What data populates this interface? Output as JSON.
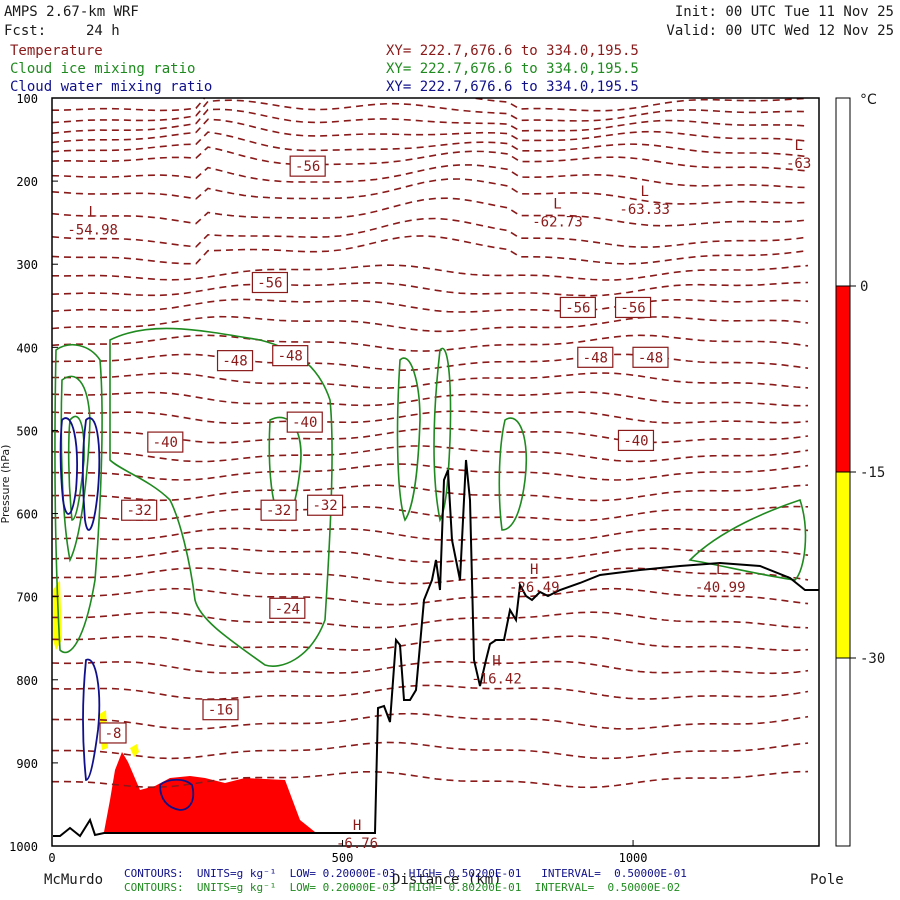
{
  "header": {
    "model": "AMPS 2.67-km WRF",
    "forecast_label": "Fcst:",
    "forecast_value": "24 h",
    "init": "Init: 00 UTC Tue 11 Nov 25",
    "valid": "Valid: 00 UTC Wed 12 Nov 25"
  },
  "fields": [
    {
      "name": "Temperature",
      "xy": "XY= 222.7,676.6 to 334.0,195.5",
      "color": "#8a1a1a"
    },
    {
      "name": "Cloud ice mixing ratio",
      "xy": "XY= 222.7,676.6 to 334.0,195.5",
      "color": "#1f8a1f"
    },
    {
      "name": "Cloud water mixing ratio",
      "xy": "XY= 222.7,676.6 to 334.0,195.5",
      "color": "#10108a"
    }
  ],
  "colorbar": {
    "unit": "°C",
    "ticks": [
      "0",
      "-15",
      "-30"
    ],
    "colors": {
      "red": "#ff0000",
      "yellow": "#ffff00",
      "white": "#ffffff"
    }
  },
  "footer": {
    "left_label": "McMurdo",
    "right_label": "Pole",
    "distance_label": "Distance (km)",
    "contour_water": "CONTOURS:  UNITS=g kg⁻¹  LOW= 0.20000E-03  HIGH= 0.50200E-01   INTERVAL=  0.50000E-01",
    "contour_ice": "CONTOURS:  UNITS=g kg⁻¹  LOW= 0.20000E-03  HIGH= 0.80200E-01  INTERVAL=  0.50000E-02"
  },
  "chart_data": {
    "type": "cross-section contour",
    "xlabel": "Distance (km)",
    "ylabel": "Pressure (hPa)",
    "xlim": [
      0,
      1320
    ],
    "ylim": [
      1000,
      100
    ],
    "x_ticks": [
      "0",
      "500",
      "1000"
    ],
    "y_ticks": [
      "100",
      "200",
      "300",
      "400",
      "500",
      "600",
      "700",
      "800",
      "900",
      "1000"
    ],
    "temperature_labels": [
      {
        "text": "-56",
        "x": 440,
        "p": 182
      },
      {
        "text": "-56",
        "x": 375,
        "p": 322
      },
      {
        "text": "-56",
        "x": 905,
        "p": 352
      },
      {
        "text": "-56",
        "x": 1000,
        "p": 352
      },
      {
        "text": "-48",
        "x": 315,
        "p": 416
      },
      {
        "text": "-48",
        "x": 410,
        "p": 410
      },
      {
        "text": "-48",
        "x": 935,
        "p": 412
      },
      {
        "text": "-48",
        "x": 1030,
        "p": 412
      },
      {
        "text": "-40",
        "x": 195,
        "p": 514
      },
      {
        "text": "-40",
        "x": 435,
        "p": 490
      },
      {
        "text": "-40",
        "x": 1005,
        "p": 512
      },
      {
        "text": "-32",
        "x": 150,
        "p": 596
      },
      {
        "text": "-32",
        "x": 390,
        "p": 596
      },
      {
        "text": "-32",
        "x": 470,
        "p": 590
      },
      {
        "text": "-24",
        "x": 405,
        "p": 714
      },
      {
        "text": "-16",
        "x": 290,
        "p": 836
      },
      {
        "text": "-8",
        "x": 105,
        "p": 864
      }
    ],
    "extrema": [
      {
        "kind": "L",
        "value": "-54.98",
        "x": 70,
        "p": 250
      },
      {
        "kind": "L",
        "value": "-62.73",
        "x": 870,
        "p": 240
      },
      {
        "kind": "L",
        "value": "-63.33",
        "x": 1020,
        "p": 225
      },
      {
        "kind": "L",
        "value": "-63",
        "x": 1285,
        "p": 170
      },
      {
        "kind": "H",
        "value": "-26.49",
        "x": 830,
        "p": 680
      },
      {
        "kind": "H",
        "value": "-16.42",
        "x": 765,
        "p": 790
      },
      {
        "kind": "H",
        "value": "-6.76",
        "x": 525,
        "p": 988
      },
      {
        "kind": "L",
        "value": "-40.99",
        "x": 1150,
        "p": 680
      }
    ]
  }
}
